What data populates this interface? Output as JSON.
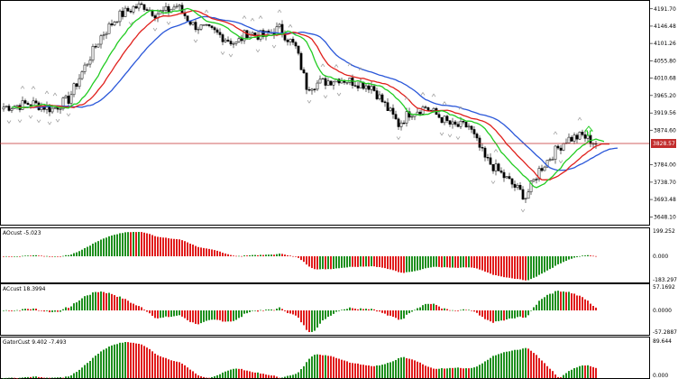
{
  "main": {
    "y_ticks": [
      "4191.70",
      "4146.48",
      "4101.26",
      "4055.80",
      "4010.68",
      "3965.20",
      "3919.56",
      "3874.60",
      "3784.00",
      "3738.70",
      "3693.48",
      "3648.10"
    ],
    "price_ymin": 3630,
    "price_ymax": 4210,
    "current_price": "3828.57",
    "current_price_value": 3828.57,
    "arrow": "up-arrow-icon",
    "colors": {
      "up_candle": "#ffffff",
      "down_candle": "#000000",
      "jaw": "#2a57d9",
      "teeth": "#e0201c",
      "lips": "#22cc22",
      "price_line": "#c22d2d",
      "arrow": "#22cc22"
    }
  },
  "panels": [
    {
      "title": "AOcust -5.023",
      "ticks": [
        "199.252",
        "0.000",
        "-183.297"
      ]
    },
    {
      "title": "ACcust 18.3994",
      "ticks": [
        "57.1692",
        "0.0000",
        "-57.2887"
      ]
    },
    {
      "title": "GatorCust 9.402 -7.493",
      "ticks": [
        "89.644",
        "0.000"
      ]
    }
  ]
}
